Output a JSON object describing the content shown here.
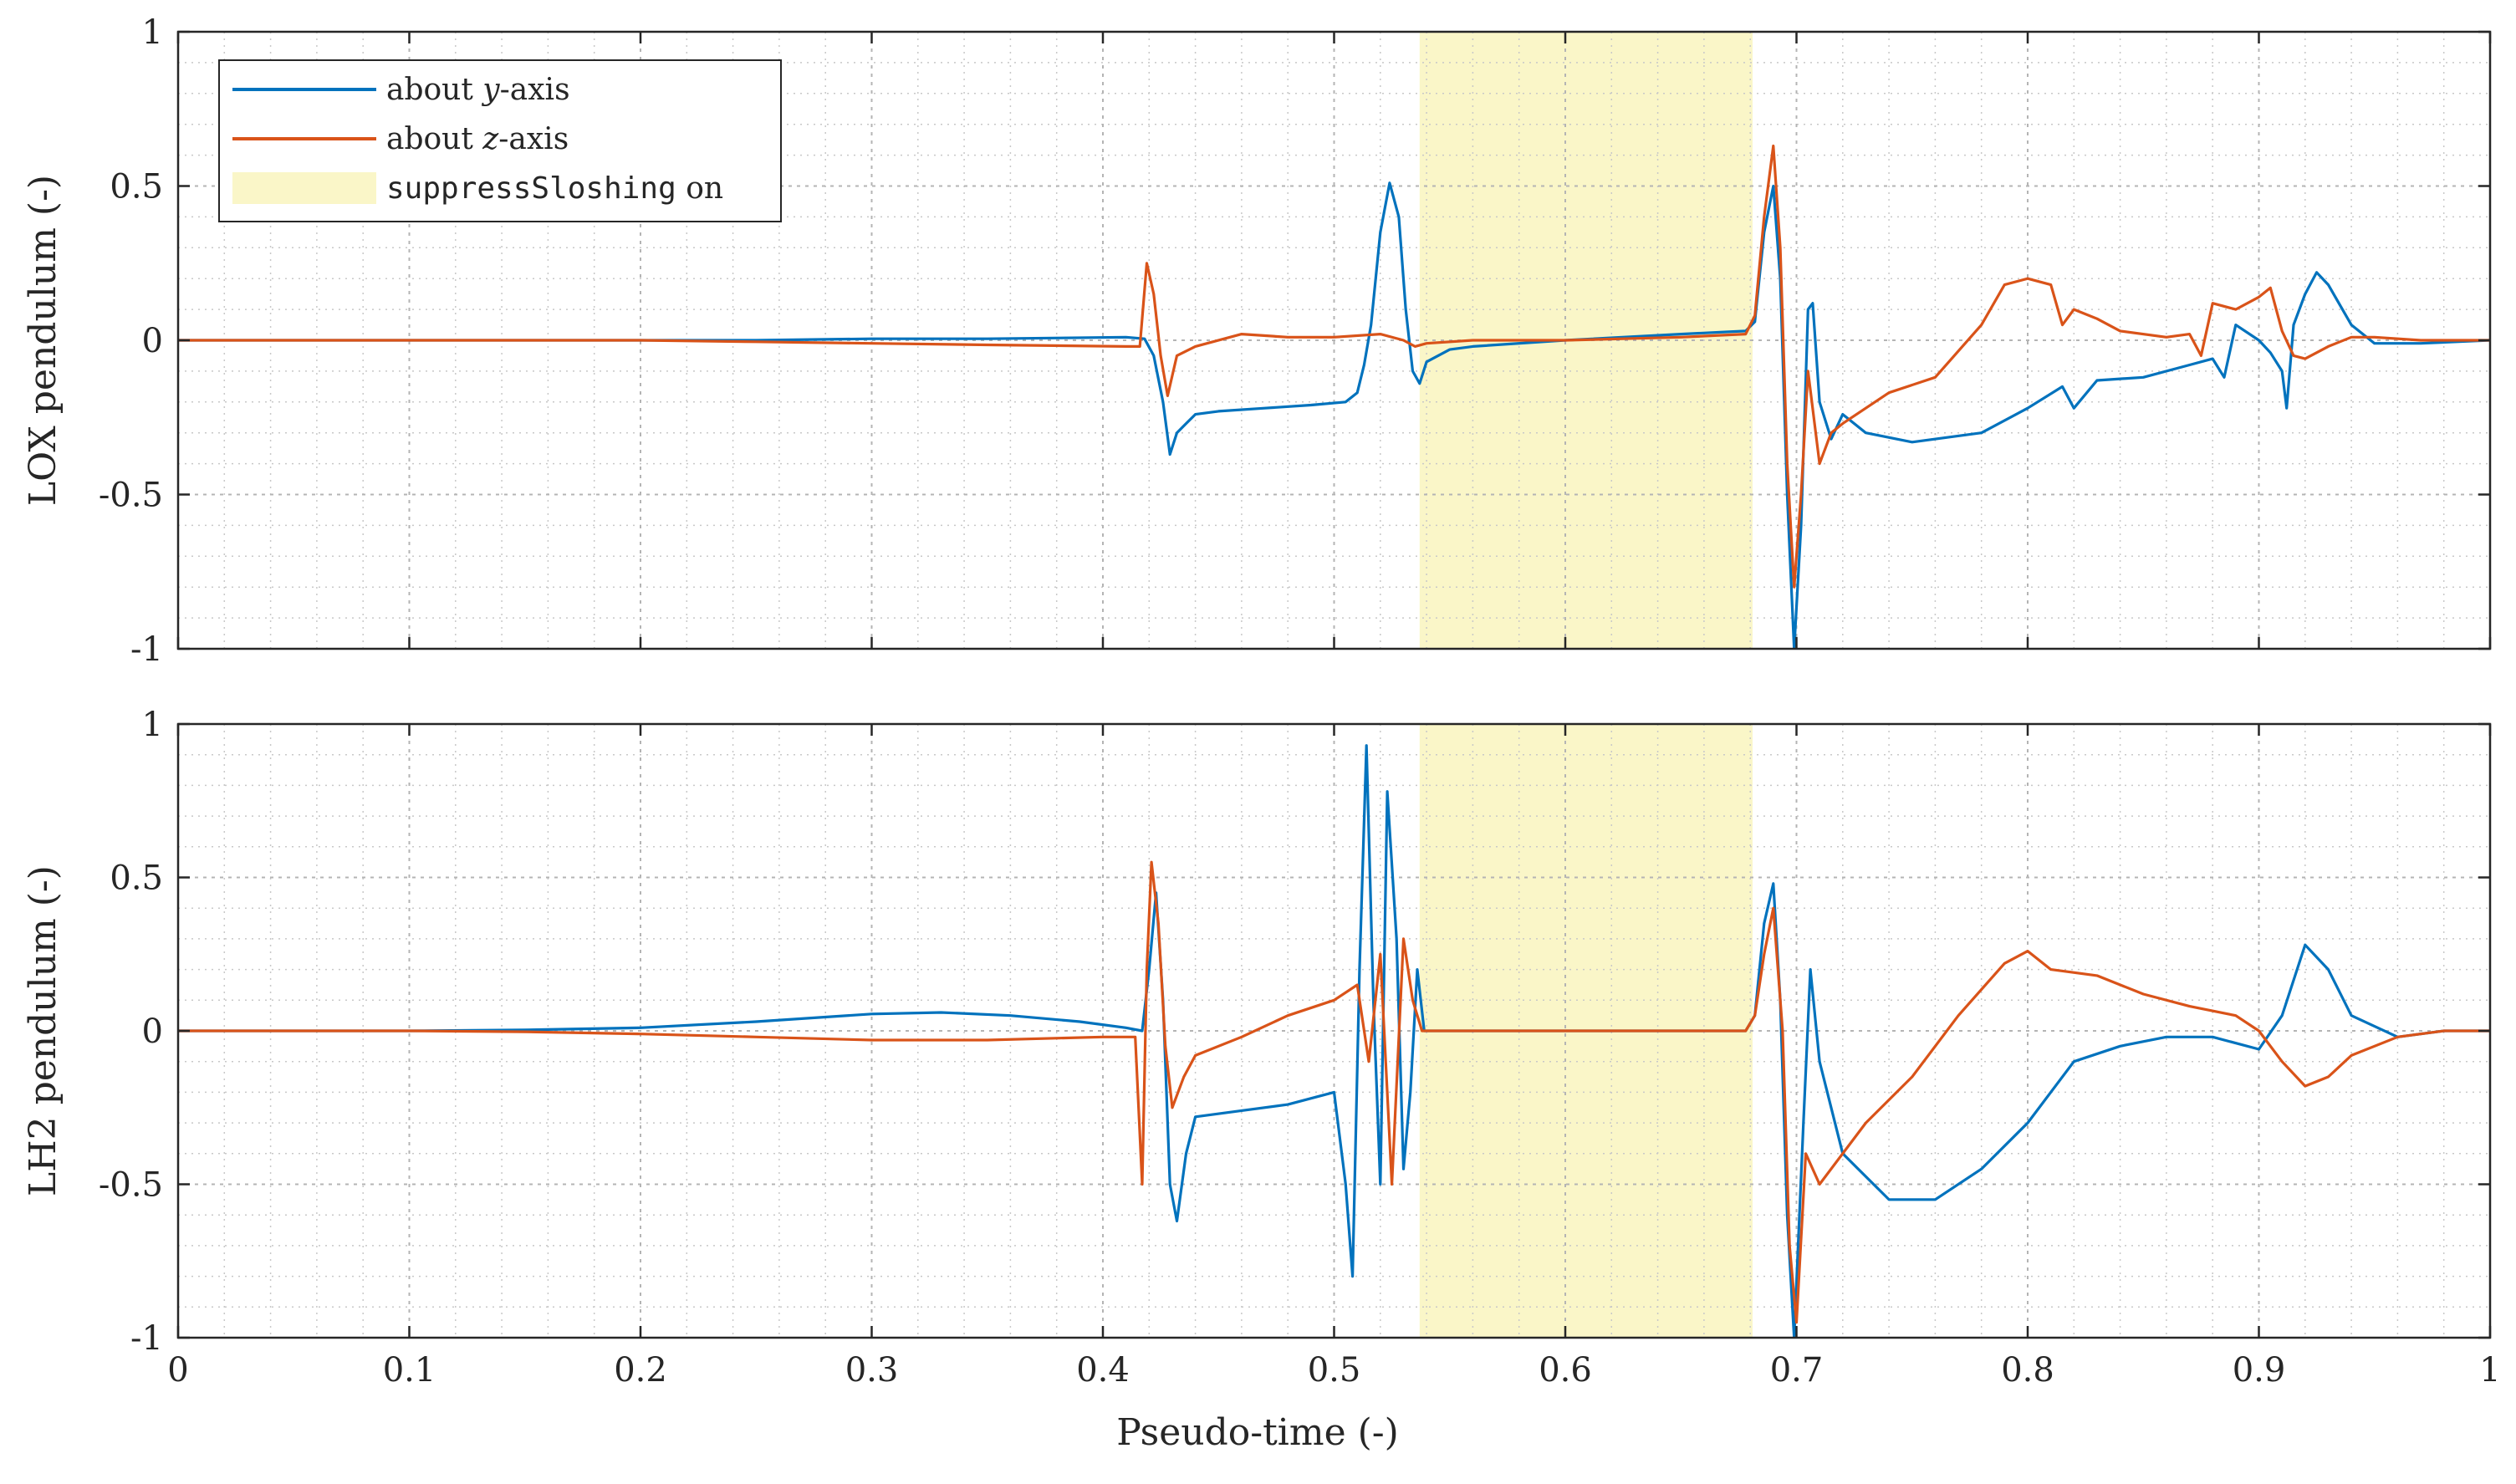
{
  "figure": {
    "xlabel": "Pseudo-time (-)"
  },
  "legend": {
    "entries": [
      {
        "prefix": "about ",
        "var": "y",
        "suffix": "-axis",
        "color": "#0072BD"
      },
      {
        "prefix": "about ",
        "var": "z",
        "suffix": "-axis",
        "color": "#D95319"
      },
      {
        "code": "suppressSloshing",
        "suffix": " on",
        "color": "#FAF6C8"
      }
    ]
  },
  "chart_data": [
    {
      "type": "line",
      "ylabel": "LOX pendulum (-)",
      "xlim": [
        0,
        1
      ],
      "ylim": [
        -1,
        1
      ],
      "xticks": [
        "0",
        "0.1",
        "0.2",
        "0.3",
        "0.4",
        "0.5",
        "0.6",
        "0.7",
        "0.8",
        "0.9",
        "1"
      ],
      "yticks": [
        "-1",
        "-0.5",
        "0",
        "0.5",
        "1"
      ],
      "grid": true,
      "minor_grid": true,
      "highlight": {
        "x0": 0.537,
        "x1": 0.681,
        "color": "#FAF6C8"
      },
      "series": [
        {
          "name": "about y-axis",
          "color": "#0072BD",
          "points": [
            [
              0,
              0
            ],
            [
              0.1,
              0
            ],
            [
              0.2,
              0
            ],
            [
              0.25,
              0
            ],
            [
              0.3,
              0.005
            ],
            [
              0.35,
              0.005
            ],
            [
              0.41,
              0.01
            ],
            [
              0.418,
              0.005
            ],
            [
              0.422,
              -0.05
            ],
            [
              0.426,
              -0.2
            ],
            [
              0.429,
              -0.37
            ],
            [
              0.432,
              -0.3
            ],
            [
              0.436,
              -0.27
            ],
            [
              0.44,
              -0.24
            ],
            [
              0.45,
              -0.23
            ],
            [
              0.47,
              -0.22
            ],
            [
              0.49,
              -0.21
            ],
            [
              0.505,
              -0.2
            ],
            [
              0.51,
              -0.17
            ],
            [
              0.513,
              -0.08
            ],
            [
              0.516,
              0.05
            ],
            [
              0.52,
              0.35
            ],
            [
              0.524,
              0.51
            ],
            [
              0.528,
              0.4
            ],
            [
              0.531,
              0.1
            ],
            [
              0.534,
              -0.1
            ],
            [
              0.537,
              -0.14
            ],
            [
              0.54,
              -0.07
            ],
            [
              0.55,
              -0.03
            ],
            [
              0.56,
              -0.02
            ],
            [
              0.6,
              0
            ],
            [
              0.65,
              0.02
            ],
            [
              0.678,
              0.03
            ],
            [
              0.682,
              0.06
            ],
            [
              0.686,
              0.35
            ],
            [
              0.69,
              0.5
            ],
            [
              0.693,
              0.2
            ],
            [
              0.696,
              -0.5
            ],
            [
              0.699,
              -1
            ],
            [
              0.702,
              -0.6
            ],
            [
              0.705,
              0.1
            ],
            [
              0.707,
              0.12
            ],
            [
              0.71,
              -0.2
            ],
            [
              0.715,
              -0.32
            ],
            [
              0.72,
              -0.24
            ],
            [
              0.73,
              -0.3
            ],
            [
              0.75,
              -0.33
            ],
            [
              0.78,
              -0.3
            ],
            [
              0.8,
              -0.22
            ],
            [
              0.815,
              -0.15
            ],
            [
              0.82,
              -0.22
            ],
            [
              0.83,
              -0.13
            ],
            [
              0.85,
              -0.12
            ],
            [
              0.87,
              -0.08
            ],
            [
              0.88,
              -0.06
            ],
            [
              0.885,
              -0.12
            ],
            [
              0.89,
              0.05
            ],
            [
              0.9,
              0
            ],
            [
              0.905,
              -0.04
            ],
            [
              0.91,
              -0.1
            ],
            [
              0.912,
              -0.22
            ],
            [
              0.915,
              0.05
            ],
            [
              0.92,
              0.15
            ],
            [
              0.925,
              0.22
            ],
            [
              0.93,
              0.18
            ],
            [
              0.94,
              0.05
            ],
            [
              0.95,
              -0.01
            ],
            [
              0.97,
              -0.01
            ],
            [
              1,
              0
            ]
          ]
        },
        {
          "name": "about z-axis",
          "color": "#D95319",
          "points": [
            [
              0,
              0
            ],
            [
              0.1,
              0
            ],
            [
              0.2,
              0
            ],
            [
              0.25,
              -0.005
            ],
            [
              0.3,
              -0.01
            ],
            [
              0.35,
              -0.015
            ],
            [
              0.41,
              -0.02
            ],
            [
              0.416,
              -0.02
            ],
            [
              0.419,
              0.25
            ],
            [
              0.422,
              0.15
            ],
            [
              0.425,
              -0.05
            ],
            [
              0.428,
              -0.18
            ],
            [
              0.432,
              -0.05
            ],
            [
              0.44,
              -0.02
            ],
            [
              0.46,
              0.02
            ],
            [
              0.48,
              0.01
            ],
            [
              0.5,
              0.01
            ],
            [
              0.52,
              0.02
            ],
            [
              0.53,
              0
            ],
            [
              0.535,
              -0.02
            ],
            [
              0.54,
              -0.01
            ],
            [
              0.56,
              0
            ],
            [
              0.6,
              0
            ],
            [
              0.65,
              0.01
            ],
            [
              0.678,
              0.02
            ],
            [
              0.682,
              0.08
            ],
            [
              0.686,
              0.4
            ],
            [
              0.69,
              0.63
            ],
            [
              0.693,
              0.3
            ],
            [
              0.696,
              -0.4
            ],
            [
              0.699,
              -0.8
            ],
            [
              0.702,
              -0.5
            ],
            [
              0.705,
              -0.1
            ],
            [
              0.71,
              -0.4
            ],
            [
              0.715,
              -0.3
            ],
            [
              0.72,
              -0.27
            ],
            [
              0.74,
              -0.17
            ],
            [
              0.76,
              -0.12
            ],
            [
              0.78,
              0.05
            ],
            [
              0.79,
              0.18
            ],
            [
              0.8,
              0.2
            ],
            [
              0.81,
              0.18
            ],
            [
              0.815,
              0.05
            ],
            [
              0.82,
              0.1
            ],
            [
              0.83,
              0.07
            ],
            [
              0.84,
              0.03
            ],
            [
              0.86,
              0.01
            ],
            [
              0.87,
              0.02
            ],
            [
              0.875,
              -0.05
            ],
            [
              0.88,
              0.12
            ],
            [
              0.89,
              0.1
            ],
            [
              0.9,
              0.14
            ],
            [
              0.905,
              0.17
            ],
            [
              0.91,
              0.03
            ],
            [
              0.915,
              -0.05
            ],
            [
              0.92,
              -0.06
            ],
            [
              0.93,
              -0.02
            ],
            [
              0.94,
              0.01
            ],
            [
              0.95,
              0.01
            ],
            [
              0.97,
              0
            ],
            [
              1,
              0
            ]
          ]
        }
      ]
    },
    {
      "type": "line",
      "ylabel": "LH2 pendulum (-)",
      "xlim": [
        0,
        1
      ],
      "ylim": [
        -1,
        1
      ],
      "xticks": [
        "0",
        "0.1",
        "0.2",
        "0.3",
        "0.4",
        "0.5",
        "0.6",
        "0.7",
        "0.8",
        "0.9",
        "1"
      ],
      "yticks": [
        "-1",
        "-0.5",
        "0",
        "0.5",
        "1"
      ],
      "grid": true,
      "minor_grid": true,
      "highlight": {
        "x0": 0.537,
        "x1": 0.681,
        "color": "#FAF6C8"
      },
      "series": [
        {
          "name": "about y-axis",
          "color": "#0072BD",
          "points": [
            [
              0,
              0
            ],
            [
              0.1,
              0
            ],
            [
              0.15,
              0.003
            ],
            [
              0.2,
              0.01
            ],
            [
              0.25,
              0.03
            ],
            [
              0.3,
              0.055
            ],
            [
              0.33,
              0.06
            ],
            [
              0.36,
              0.05
            ],
            [
              0.39,
              0.03
            ],
            [
              0.41,
              0.01
            ],
            [
              0.417,
              0
            ],
            [
              0.42,
              0.2
            ],
            [
              0.423,
              0.45
            ],
            [
              0.426,
              0.1
            ],
            [
              0.429,
              -0.5
            ],
            [
              0.432,
              -0.62
            ],
            [
              0.436,
              -0.4
            ],
            [
              0.44,
              -0.28
            ],
            [
              0.46,
              -0.26
            ],
            [
              0.48,
              -0.24
            ],
            [
              0.5,
              -0.2
            ],
            [
              0.505,
              -0.5
            ],
            [
              0.508,
              -0.8
            ],
            [
              0.511,
              0.2
            ],
            [
              0.514,
              0.93
            ],
            [
              0.517,
              0.1
            ],
            [
              0.52,
              -0.5
            ],
            [
              0.523,
              0.78
            ],
            [
              0.527,
              0.3
            ],
            [
              0.53,
              -0.45
            ],
            [
              0.533,
              -0.2
            ],
            [
              0.536,
              0.2
            ],
            [
              0.539,
              0
            ],
            [
              0.56,
              0
            ],
            [
              0.6,
              0
            ],
            [
              0.65,
              0
            ],
            [
              0.678,
              0
            ],
            [
              0.682,
              0.05
            ],
            [
              0.686,
              0.35
            ],
            [
              0.69,
              0.48
            ],
            [
              0.693,
              0.1
            ],
            [
              0.696,
              -0.6
            ],
            [
              0.699,
              -1
            ],
            [
              0.703,
              -0.3
            ],
            [
              0.706,
              0.2
            ],
            [
              0.71,
              -0.1
            ],
            [
              0.72,
              -0.4
            ],
            [
              0.74,
              -0.55
            ],
            [
              0.76,
              -0.55
            ],
            [
              0.78,
              -0.45
            ],
            [
              0.8,
              -0.3
            ],
            [
              0.82,
              -0.1
            ],
            [
              0.84,
              -0.05
            ],
            [
              0.86,
              -0.02
            ],
            [
              0.88,
              -0.02
            ],
            [
              0.9,
              -0.06
            ],
            [
              0.91,
              0.05
            ],
            [
              0.92,
              0.28
            ],
            [
              0.93,
              0.2
            ],
            [
              0.94,
              0.05
            ],
            [
              0.96,
              -0.02
            ],
            [
              0.98,
              0
            ],
            [
              1,
              0
            ]
          ]
        },
        {
          "name": "about z-axis",
          "color": "#D95319",
          "points": [
            [
              0,
              0
            ],
            [
              0.1,
              0
            ],
            [
              0.15,
              -0.003
            ],
            [
              0.2,
              -0.01
            ],
            [
              0.25,
              -0.02
            ],
            [
              0.3,
              -0.03
            ],
            [
              0.35,
              -0.03
            ],
            [
              0.4,
              -0.02
            ],
            [
              0.414,
              -0.02
            ],
            [
              0.417,
              -0.5
            ],
            [
              0.419,
              0.2
            ],
            [
              0.421,
              0.55
            ],
            [
              0.424,
              0.35
            ],
            [
              0.427,
              -0.05
            ],
            [
              0.43,
              -0.25
            ],
            [
              0.435,
              -0.15
            ],
            [
              0.44,
              -0.08
            ],
            [
              0.46,
              -0.02
            ],
            [
              0.48,
              0.05
            ],
            [
              0.5,
              0.1
            ],
            [
              0.51,
              0.15
            ],
            [
              0.515,
              -0.1
            ],
            [
              0.52,
              0.25
            ],
            [
              0.525,
              -0.5
            ],
            [
              0.53,
              0.3
            ],
            [
              0.534,
              0.1
            ],
            [
              0.538,
              0
            ],
            [
              0.56,
              0
            ],
            [
              0.6,
              0
            ],
            [
              0.65,
              0
            ],
            [
              0.678,
              0
            ],
            [
              0.682,
              0.05
            ],
            [
              0.686,
              0.25
            ],
            [
              0.69,
              0.4
            ],
            [
              0.694,
              0
            ],
            [
              0.697,
              -0.7
            ],
            [
              0.7,
              -0.95
            ],
            [
              0.704,
              -0.4
            ],
            [
              0.71,
              -0.5
            ],
            [
              0.73,
              -0.3
            ],
            [
              0.75,
              -0.15
            ],
            [
              0.77,
              0.05
            ],
            [
              0.79,
              0.22
            ],
            [
              0.8,
              0.26
            ],
            [
              0.81,
              0.2
            ],
            [
              0.83,
              0.18
            ],
            [
              0.85,
              0.12
            ],
            [
              0.87,
              0.08
            ],
            [
              0.89,
              0.05
            ],
            [
              0.9,
              0.0
            ],
            [
              0.91,
              -0.1
            ],
            [
              0.92,
              -0.18
            ],
            [
              0.93,
              -0.15
            ],
            [
              0.94,
              -0.08
            ],
            [
              0.96,
              -0.02
            ],
            [
              0.98,
              0
            ],
            [
              1,
              0
            ]
          ]
        }
      ]
    }
  ]
}
